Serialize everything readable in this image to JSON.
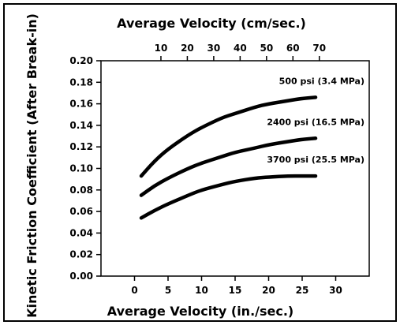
{
  "chart_data": {
    "type": "line",
    "title": "",
    "xlabel": "Average Velocity (in./sec.)",
    "x2label": "Average Velocity (cm/sec.)",
    "ylabel": "Kinetic Friction Coefficient (After Break-in)",
    "xlim": [
      -5,
      35
    ],
    "ylim": [
      0,
      0.2
    ],
    "x_ticks": [
      "0",
      "5",
      "10",
      "15",
      "20",
      "25",
      "30"
    ],
    "x2_ticks": [
      "10",
      "20",
      "30",
      "40",
      "50",
      "60",
      "70"
    ],
    "y_ticks": [
      "0.00",
      "0.02",
      "0.04",
      "0.06",
      "0.08",
      "0.10",
      "0.12",
      "0.14",
      "0.16",
      "0.18",
      "0.20"
    ],
    "grid": false,
    "series": [
      {
        "name": "500 psi (3.4 MPa)",
        "x": [
          1,
          3,
          5,
          8,
          10,
          13,
          15,
          18,
          20,
          23,
          25,
          27
        ],
        "y": [
          0.093,
          0.107,
          0.118,
          0.131,
          0.138,
          0.147,
          0.151,
          0.157,
          0.16,
          0.163,
          0.165,
          0.166
        ]
      },
      {
        "name": "2400 psi (16.5 MPa)",
        "x": [
          1,
          3,
          5,
          8,
          10,
          13,
          15,
          18,
          20,
          23,
          25,
          27
        ],
        "y": [
          0.075,
          0.084,
          0.091,
          0.1,
          0.105,
          0.111,
          0.115,
          0.119,
          0.122,
          0.125,
          0.127,
          0.128
        ]
      },
      {
        "name": "3700 psi (25.5 MPa)",
        "x": [
          1,
          3,
          5,
          8,
          10,
          13,
          15,
          18,
          20,
          23,
          25,
          27
        ],
        "y": [
          0.054,
          0.061,
          0.067,
          0.075,
          0.08,
          0.085,
          0.088,
          0.091,
          0.092,
          0.093,
          0.093,
          0.093
        ]
      }
    ]
  }
}
